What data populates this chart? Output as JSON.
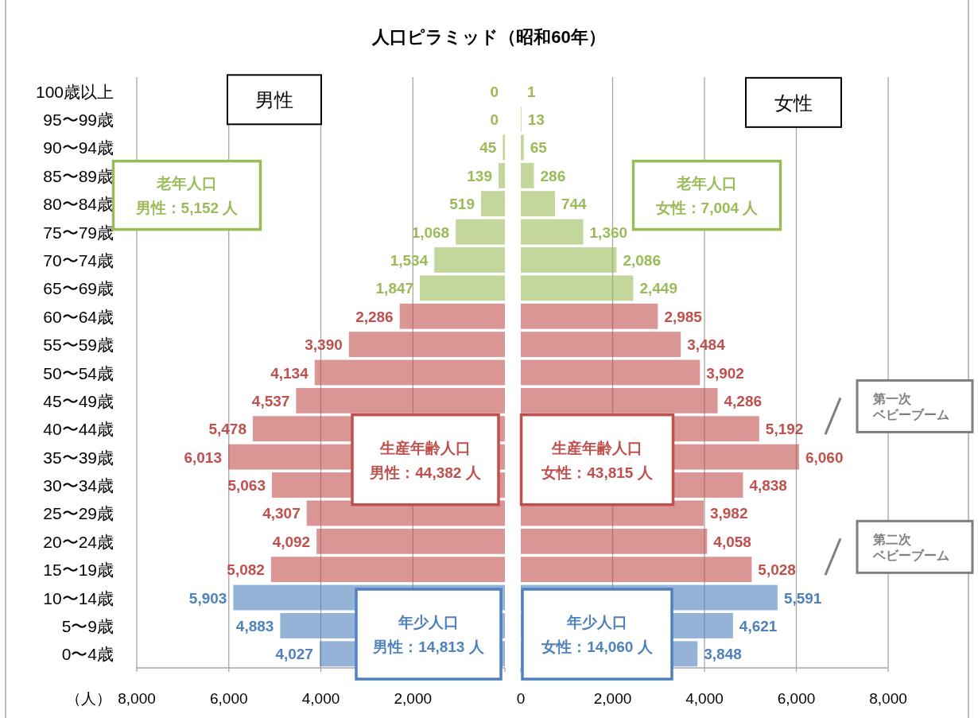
{
  "chart_data": [
    {
      "type": "bar",
      "orientation": "horizontal",
      "title": "人口ピラミッド（昭和60年）",
      "xlabel": "（人）",
      "categories": [
        "100歳以上",
        "95〜99歳",
        "90〜94歳",
        "85〜89歳",
        "80〜84歳",
        "75〜79歳",
        "70〜74歳",
        "65〜69歳",
        "60〜64歳",
        "55〜59歳",
        "50〜54歳",
        "45〜49歳",
        "40〜44歳",
        "35〜39歳",
        "30〜34歳",
        "25〜29歳",
        "20〜24歳",
        "15〜19歳",
        "10〜14歳",
        "5〜9歳",
        "0〜4歳"
      ],
      "values": [
        0,
        0,
        45,
        139,
        519,
        1068,
        1534,
        1847,
        2286,
        3390,
        4134,
        4537,
        5478,
        6013,
        5063,
        4307,
        4092,
        5082,
        5903,
        4883,
        4027
      ],
      "value_labels": [
        "0",
        "0",
        "45",
        "139",
        "519",
        "1,068",
        "1,534",
        "1,847",
        "2,286",
        "3,390",
        "4,134",
        "4,537",
        "5,478",
        "6,013",
        "5,063",
        "4,307",
        "4,092",
        "5,082",
        "5,903",
        "4,883",
        "4,027"
      ],
      "colors": [
        "#9bbb59",
        "#9bbb59",
        "#9bbb59",
        "#9bbb59",
        "#9bbb59",
        "#9bbb59",
        "#9bbb59",
        "#9bbb59",
        "#c0504d",
        "#c0504d",
        "#c0504d",
        "#c0504d",
        "#c0504d",
        "#c0504d",
        "#c0504d",
        "#c0504d",
        "#c0504d",
        "#c0504d",
        "#4f81bd",
        "#4f81bd",
        "#4f81bd"
      ],
      "xlim": [
        8000,
        0
      ],
      "xticks": [
        {
          "value": 8000,
          "label": "8,000"
        },
        {
          "value": 6000,
          "label": "6,000"
        },
        {
          "value": 4000,
          "label": "4,000"
        },
        {
          "value": 2000,
          "label": "2,000"
        },
        {
          "value": 0,
          "label": null
        }
      ],
      "grid": "x",
      "annotations": [
        "男性",
        "老年人口",
        "男性：5,152 人",
        "生産年齢人口",
        "男性：44,382 人",
        "年少人口",
        "男性：14,813 人"
      ]
    },
    {
      "type": "bar",
      "orientation": "horizontal",
      "categories": [
        null,
        null,
        null,
        null,
        null,
        null,
        null,
        null,
        null,
        null,
        null,
        null,
        null,
        null,
        null,
        null,
        null,
        null,
        null,
        null,
        null
      ],
      "values": [
        1,
        13,
        65,
        286,
        744,
        1360,
        2086,
        2449,
        2985,
        3484,
        3902,
        4286,
        5192,
        6060,
        4838,
        3982,
        4058,
        5028,
        5591,
        4621,
        3848
      ],
      "value_labels": [
        "1",
        "13",
        "65",
        "286",
        "744",
        "1,360",
        "2,086",
        "2,449",
        "2,985",
        "3,484",
        "3,902",
        "4,286",
        "5,192",
        "6,060",
        "4,838",
        "3,982",
        "4,058",
        "5,028",
        "5,591",
        "4,621",
        "3,848"
      ],
      "colors": [
        "#9bbb59",
        "#9bbb59",
        "#9bbb59",
        "#9bbb59",
        "#9bbb59",
        "#9bbb59",
        "#9bbb59",
        "#9bbb59",
        "#c0504d",
        "#c0504d",
        "#c0504d",
        "#c0504d",
        "#c0504d",
        "#c0504d",
        "#c0504d",
        "#c0504d",
        "#c0504d",
        "#c0504d",
        "#4f81bd",
        "#4f81bd",
        "#4f81bd"
      ],
      "xlim": [
        0,
        8000
      ],
      "xticks": [
        0,
        {
          "value": 2000,
          "label": "2,000"
        },
        {
          "value": 4000,
          "label": "4,000"
        },
        {
          "value": 6000,
          "label": "6,000"
        },
        {
          "value": 8000,
          "label": "8,000"
        }
      ],
      "grid": "x",
      "tick_labels": "x",
      "annotations": [
        "女性",
        "老年人口",
        "女性：7,004 人",
        "生産年齢人口",
        "女性：43,815 人",
        "年少人口",
        "女性：14,060 人",
        "第一次",
        "ベビーブーム",
        "第二次",
        "ベビーブーム"
      ]
    }
  ]
}
